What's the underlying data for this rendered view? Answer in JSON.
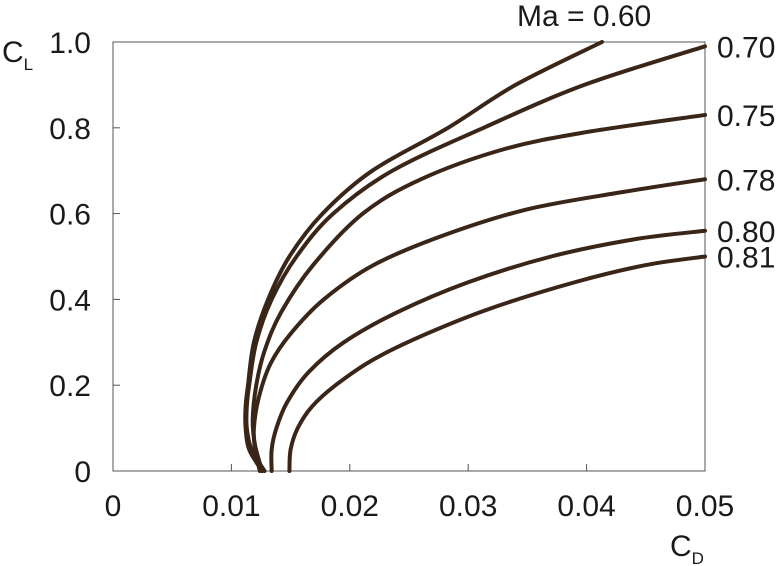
{
  "chart_data": {
    "type": "line",
    "title": "",
    "xlabel": {
      "main": "C",
      "sub": "D"
    },
    "ylabel": {
      "main": "C",
      "sub": "L"
    },
    "xlim": [
      0,
      0.05
    ],
    "ylim": [
      0,
      1.0
    ],
    "x_ticks": [
      0,
      0.01,
      0.02,
      0.03,
      0.04,
      0.05
    ],
    "x_tick_labels": [
      "0",
      "0.01",
      "0.02",
      "0.03",
      "0.04",
      "0.05"
    ],
    "y_ticks": [
      0,
      0.2,
      0.4,
      0.6,
      0.8,
      1.0
    ],
    "y_tick_labels": [
      "0",
      "0.2",
      "0.4",
      "0.6",
      "0.8",
      "1.0"
    ],
    "grid": false,
    "line_color": "#3a2618",
    "series": [
      {
        "name": "Ma = 0.60",
        "points": [
          [
            0.0126,
            0
          ],
          [
            0.0115,
            0.05
          ],
          [
            0.0112,
            0.1
          ],
          [
            0.0112,
            0.15
          ],
          [
            0.0114,
            0.2
          ],
          [
            0.0119,
            0.3
          ],
          [
            0.0131,
            0.4
          ],
          [
            0.0149,
            0.5
          ],
          [
            0.0177,
            0.6
          ],
          [
            0.0219,
            0.7
          ],
          [
            0.0283,
            0.8
          ],
          [
            0.034,
            0.9
          ],
          [
            0.0413,
            1.0
          ]
        ]
      },
      {
        "name": "0.70",
        "points": [
          [
            0.0128,
            0
          ],
          [
            0.0117,
            0.05
          ],
          [
            0.0113,
            0.1
          ],
          [
            0.0113,
            0.15
          ],
          [
            0.0115,
            0.2
          ],
          [
            0.0121,
            0.3
          ],
          [
            0.0134,
            0.4
          ],
          [
            0.0155,
            0.5
          ],
          [
            0.0186,
            0.6
          ],
          [
            0.0236,
            0.7
          ],
          [
            0.0313,
            0.8
          ],
          [
            0.0398,
            0.9
          ],
          [
            0.05,
            0.99
          ]
        ]
      },
      {
        "name": "0.75",
        "points": [
          [
            0.0126,
            0
          ],
          [
            0.012,
            0.06
          ],
          [
            0.0118,
            0.12
          ],
          [
            0.0121,
            0.2
          ],
          [
            0.0128,
            0.28
          ],
          [
            0.0142,
            0.37
          ],
          [
            0.0169,
            0.48
          ],
          [
            0.0211,
            0.6
          ],
          [
            0.026,
            0.68
          ],
          [
            0.033,
            0.75
          ],
          [
            0.04,
            0.79
          ],
          [
            0.05,
            0.83
          ]
        ]
      },
      {
        "name": "0.78",
        "points": [
          [
            0.0124,
            0
          ],
          [
            0.012,
            0.05
          ],
          [
            0.0119,
            0.1
          ],
          [
            0.0123,
            0.17
          ],
          [
            0.0133,
            0.25
          ],
          [
            0.015,
            0.32
          ],
          [
            0.0178,
            0.4
          ],
          [
            0.022,
            0.48
          ],
          [
            0.028,
            0.55
          ],
          [
            0.035,
            0.61
          ],
          [
            0.043,
            0.65
          ],
          [
            0.05,
            0.68
          ]
        ]
      },
      {
        "name": "0.80",
        "points": [
          [
            0.0134,
            0
          ],
          [
            0.0134,
            0.05
          ],
          [
            0.0138,
            0.1
          ],
          [
            0.0147,
            0.16
          ],
          [
            0.0165,
            0.23
          ],
          [
            0.0195,
            0.3
          ],
          [
            0.024,
            0.37
          ],
          [
            0.03,
            0.44
          ],
          [
            0.037,
            0.5
          ],
          [
            0.044,
            0.54
          ],
          [
            0.05,
            0.56
          ]
        ]
      },
      {
        "name": "0.81",
        "points": [
          [
            0.0149,
            0
          ],
          [
            0.015,
            0.05
          ],
          [
            0.0156,
            0.1
          ],
          [
            0.0168,
            0.15
          ],
          [
            0.0188,
            0.2
          ],
          [
            0.022,
            0.26
          ],
          [
            0.0265,
            0.32
          ],
          [
            0.032,
            0.38
          ],
          [
            0.039,
            0.44
          ],
          [
            0.045,
            0.48
          ],
          [
            0.05,
            0.5
          ]
        ]
      }
    ]
  }
}
